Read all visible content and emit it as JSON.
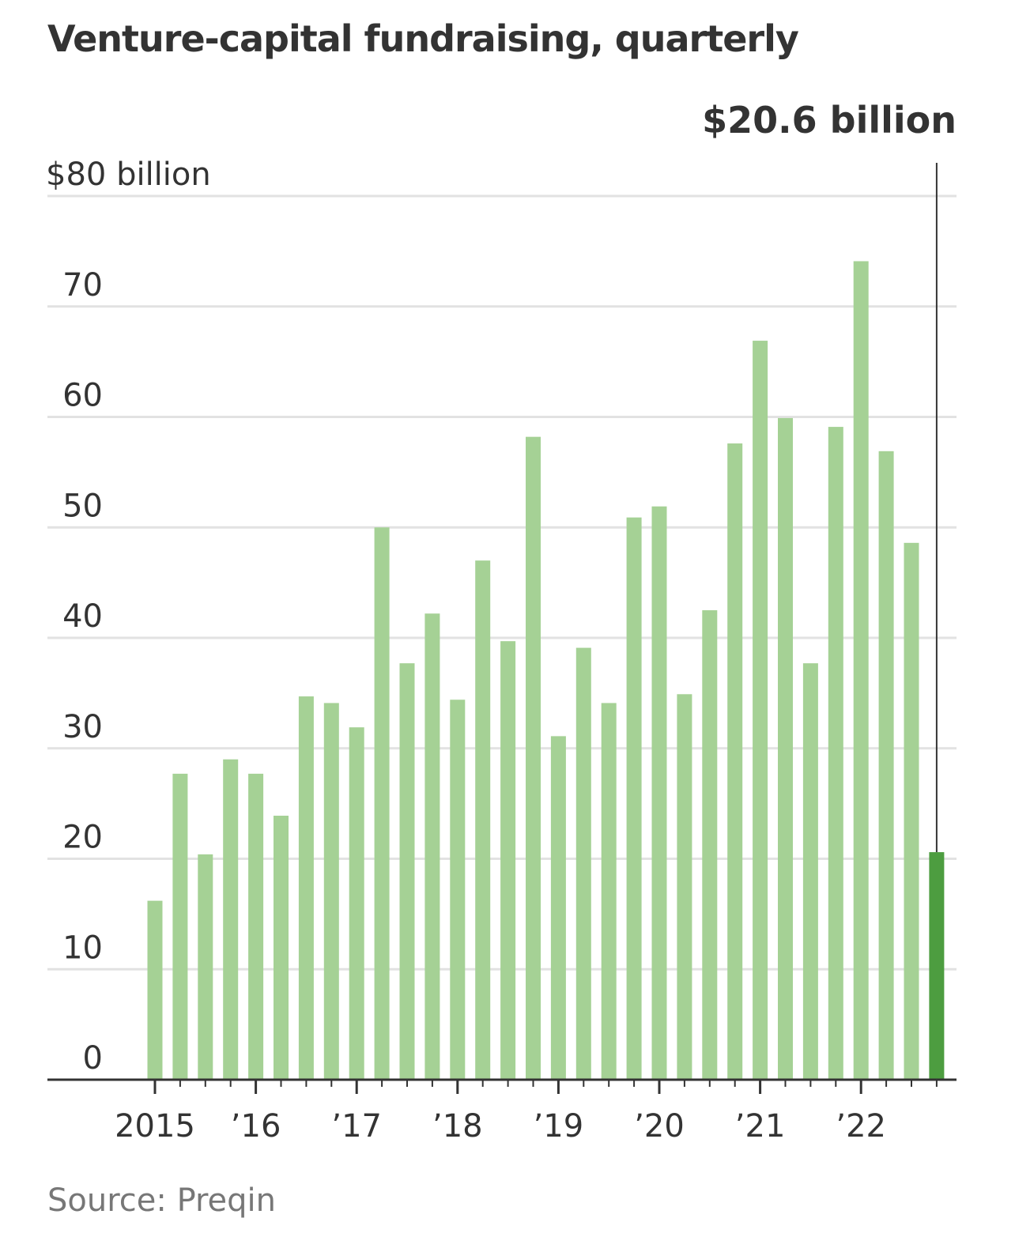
{
  "title": "Venture-capital fundraising, quarterly",
  "source": "Source: Preqin",
  "colors": {
    "bar": "#a5d195",
    "highlight_bar": "#4d9d40",
    "grid": "#e2e2e2",
    "axis": "#333333",
    "text": "#333333",
    "source_text": "#777777"
  },
  "chart_data": {
    "type": "bar",
    "title": "Venture-capital fundraising, quarterly",
    "ylabel": "$80 billion",
    "ylim": [
      0,
      80
    ],
    "yticks": [
      0,
      10,
      20,
      30,
      40,
      50,
      60,
      70,
      80
    ],
    "ytick_labels": [
      "0",
      "10",
      "20",
      "30",
      "40",
      "50",
      "60",
      "70",
      "$80 billion"
    ],
    "x_tick_labels": [
      {
        "label": "2015",
        "quarter_index": 0
      },
      {
        "label": "’16",
        "quarter_index": 4
      },
      {
        "label": "’17",
        "quarter_index": 8
      },
      {
        "label": "’18",
        "quarter_index": 12
      },
      {
        "label": "’19",
        "quarter_index": 16
      },
      {
        "label": "’20",
        "quarter_index": 20
      },
      {
        "label": "’21",
        "quarter_index": 24
      },
      {
        "label": "’22",
        "quarter_index": 28
      }
    ],
    "values": [
      16.2,
      27.7,
      20.4,
      29.0,
      27.7,
      23.9,
      34.7,
      34.1,
      31.9,
      50.0,
      37.7,
      42.2,
      34.4,
      47.0,
      39.7,
      58.2,
      31.1,
      39.1,
      34.1,
      50.9,
      51.9,
      34.9,
      42.5,
      57.6,
      66.9,
      59.9,
      37.7,
      59.1,
      74.1,
      56.9,
      48.6,
      20.6
    ],
    "highlight": {
      "index": 31,
      "label": "$20.6 billion"
    },
    "grid": true
  }
}
